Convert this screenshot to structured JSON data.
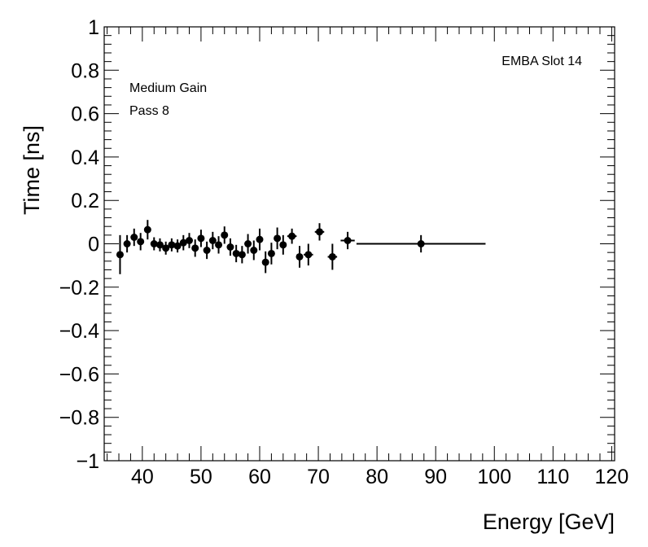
{
  "chart_data": {
    "type": "scatter",
    "xlabel": "Energy [GeV]",
    "ylabel": "Time [ns]",
    "xlim": [
      33.5,
      120.5
    ],
    "ylim": [
      -1,
      1
    ],
    "grid": false,
    "x_ticks": [
      40,
      50,
      60,
      70,
      80,
      90,
      100,
      110,
      120
    ],
    "x_tick_labels": [
      "40",
      "50",
      "60",
      "70",
      "80",
      "90",
      "100",
      "110",
      "120"
    ],
    "y_ticks": [
      -1,
      -0.8,
      -0.6,
      -0.4,
      -0.2,
      0,
      0.2,
      0.4,
      0.6,
      0.8,
      1
    ],
    "y_tick_labels": [
      "−1",
      "−0.8",
      "−0.6",
      "−0.4",
      "−0.2",
      "0",
      "0.2",
      "0.4",
      "0.6",
      "0.8",
      "1"
    ],
    "annotations": [
      "EMBA Slot 14",
      "Medium Gain",
      "Pass 8"
    ],
    "series": [
      {
        "marker_color": "#000000",
        "points": [
          {
            "x": 36.2,
            "y": -0.05,
            "xerr": 0.5,
            "yerr": 0.09
          },
          {
            "x": 37.4,
            "y": 0.0,
            "xerr": 0.5,
            "yerr": 0.04
          },
          {
            "x": 38.6,
            "y": 0.03,
            "xerr": 0.5,
            "yerr": 0.04
          },
          {
            "x": 39.7,
            "y": 0.01,
            "xerr": 0.5,
            "yerr": 0.04
          },
          {
            "x": 40.9,
            "y": 0.065,
            "xerr": 0.5,
            "yerr": 0.045
          },
          {
            "x": 42.0,
            "y": 0.0,
            "xerr": 0.5,
            "yerr": 0.03
          },
          {
            "x": 43.0,
            "y": -0.005,
            "xerr": 0.5,
            "yerr": 0.03
          },
          {
            "x": 44.0,
            "y": -0.02,
            "xerr": 0.5,
            "yerr": 0.03
          },
          {
            "x": 45.0,
            "y": -0.005,
            "xerr": 0.5,
            "yerr": 0.03
          },
          {
            "x": 46.0,
            "y": -0.01,
            "xerr": 0.5,
            "yerr": 0.03
          },
          {
            "x": 47.0,
            "y": 0.005,
            "xerr": 0.5,
            "yerr": 0.035
          },
          {
            "x": 48.0,
            "y": 0.015,
            "xerr": 0.5,
            "yerr": 0.035
          },
          {
            "x": 49.0,
            "y": -0.02,
            "xerr": 0.5,
            "yerr": 0.04
          },
          {
            "x": 50.0,
            "y": 0.025,
            "xerr": 0.5,
            "yerr": 0.04
          },
          {
            "x": 51.0,
            "y": -0.03,
            "xerr": 0.5,
            "yerr": 0.04
          },
          {
            "x": 52.0,
            "y": 0.015,
            "xerr": 0.5,
            "yerr": 0.04
          },
          {
            "x": 53.0,
            "y": -0.005,
            "xerr": 0.5,
            "yerr": 0.04
          },
          {
            "x": 54.0,
            "y": 0.04,
            "xerr": 0.5,
            "yerr": 0.04
          },
          {
            "x": 55.0,
            "y": -0.015,
            "xerr": 0.5,
            "yerr": 0.04
          },
          {
            "x": 56.0,
            "y": -0.045,
            "xerr": 0.5,
            "yerr": 0.04
          },
          {
            "x": 57.0,
            "y": -0.05,
            "xerr": 0.5,
            "yerr": 0.04
          },
          {
            "x": 58.0,
            "y": 0.0,
            "xerr": 0.5,
            "yerr": 0.045
          },
          {
            "x": 59.0,
            "y": -0.03,
            "xerr": 0.5,
            "yerr": 0.045
          },
          {
            "x": 60.0,
            "y": 0.02,
            "xerr": 0.5,
            "yerr": 0.05
          },
          {
            "x": 61.0,
            "y": -0.085,
            "xerr": 0.5,
            "yerr": 0.05
          },
          {
            "x": 62.0,
            "y": -0.045,
            "xerr": 0.5,
            "yerr": 0.05
          },
          {
            "x": 63.0,
            "y": 0.025,
            "xerr": 0.5,
            "yerr": 0.05
          },
          {
            "x": 64.0,
            "y": -0.005,
            "xerr": 0.5,
            "yerr": 0.045
          },
          {
            "x": 65.5,
            "y": 0.035,
            "xerr": 0.8,
            "yerr": 0.035
          },
          {
            "x": 66.8,
            "y": -0.06,
            "xerr": 0.5,
            "yerr": 0.05
          },
          {
            "x": 68.3,
            "y": -0.05,
            "xerr": 0.8,
            "yerr": 0.05
          },
          {
            "x": 70.2,
            "y": 0.055,
            "xerr": 0.8,
            "yerr": 0.04
          },
          {
            "x": 72.4,
            "y": -0.06,
            "xerr": 0.8,
            "yerr": 0.06
          },
          {
            "x": 75.0,
            "y": 0.015,
            "xerr": 1.2,
            "yerr": 0.04
          },
          {
            "x": 87.5,
            "y": 0.0,
            "xerr": 11.0,
            "yerr": 0.04
          }
        ]
      }
    ]
  }
}
